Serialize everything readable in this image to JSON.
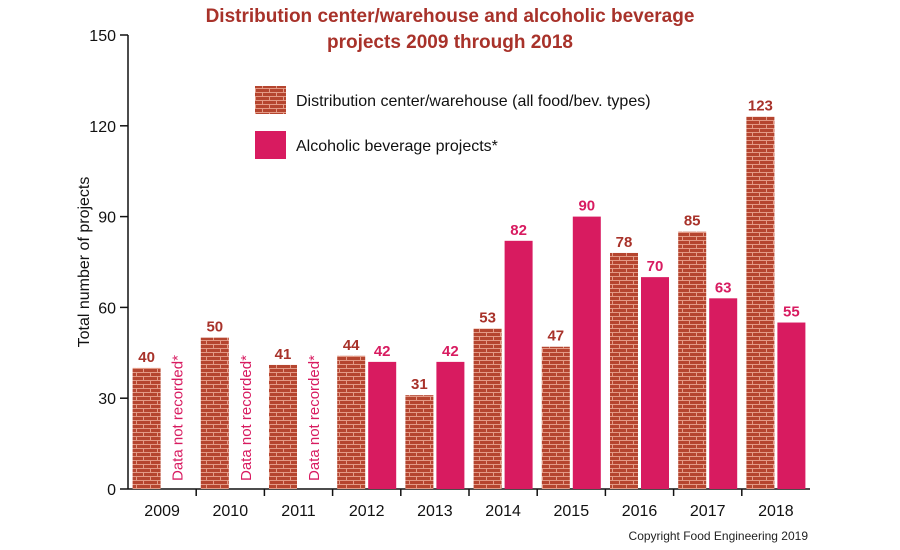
{
  "chart_data": {
    "type": "bar",
    "title_lines": [
      "Distribution center/warehouse and alcoholic beverage",
      "projects 2009 through 2018"
    ],
    "ylabel": "Total number of projects",
    "xlabel": "",
    "ylim": [
      0,
      150
    ],
    "yticks": [
      0,
      30,
      60,
      90,
      120,
      150
    ],
    "categories": [
      "2009",
      "2010",
      "2011",
      "2012",
      "2013",
      "2014",
      "2015",
      "2016",
      "2017",
      "2018"
    ],
    "series": [
      {
        "name": "Distribution center/warehouse (all food/bev. types)",
        "values": [
          40,
          50,
          41,
          44,
          31,
          53,
          47,
          78,
          85,
          123
        ]
      },
      {
        "name": "Alcoholic beverage projects*",
        "values": [
          null,
          null,
          null,
          42,
          42,
          82,
          90,
          70,
          63,
          55
        ]
      }
    ],
    "missing_note": "Data not recorded*",
    "legend_position": "top-center",
    "grid": false
  },
  "colors": {
    "title": "#a8322a",
    "brick": "#b5452f",
    "mortar": "#e39a86",
    "alcohol": "#d81b60",
    "value_label_dc": "#a8322a",
    "value_label_alc": "#d81b60",
    "note": "#d81b60"
  },
  "copyright": "Copyright Food Engineering 2019"
}
